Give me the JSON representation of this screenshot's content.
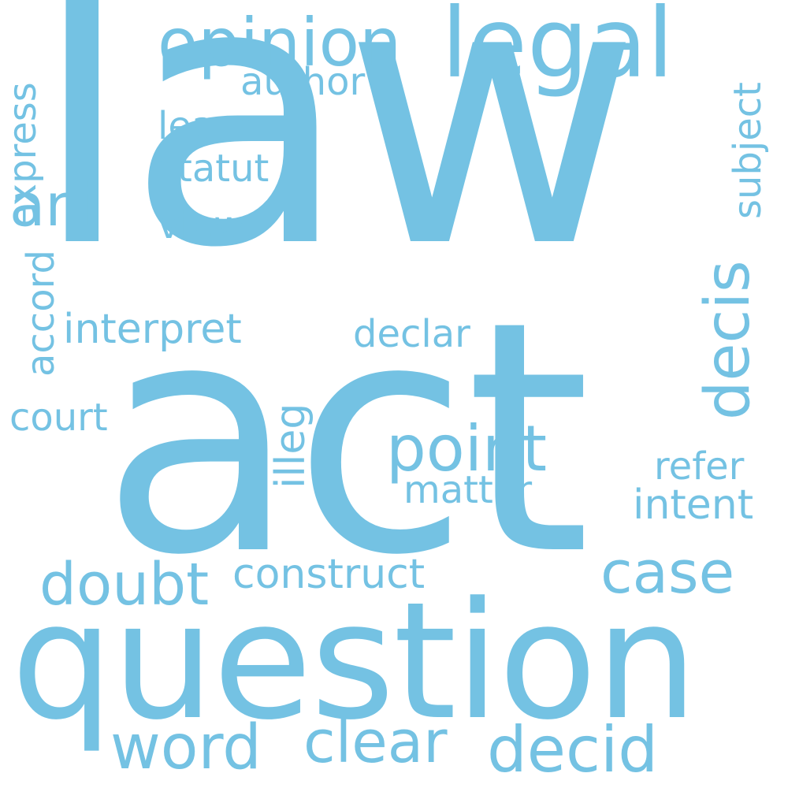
{
  "colors": {
    "background": "#ffffff",
    "word": "#74c2e3"
  },
  "words": [
    {
      "text": "law"
    },
    {
      "text": "act"
    },
    {
      "text": "question"
    },
    {
      "text": "legal"
    },
    {
      "text": "opinion"
    },
    {
      "text": "author"
    },
    {
      "text": "learn"
    },
    {
      "text": "statut"
    },
    {
      "text": "ani"
    },
    {
      "text": "view"
    },
    {
      "text": "express"
    },
    {
      "text": "accord"
    },
    {
      "text": "subject"
    },
    {
      "text": "decis"
    },
    {
      "text": "interpret"
    },
    {
      "text": "declar"
    },
    {
      "text": "illeg"
    },
    {
      "text": "court"
    },
    {
      "text": "point"
    },
    {
      "text": "refer"
    },
    {
      "text": "matter"
    },
    {
      "text": "intent"
    },
    {
      "text": "case"
    },
    {
      "text": "doubt"
    },
    {
      "text": "construct"
    },
    {
      "text": "word"
    },
    {
      "text": "clear"
    },
    {
      "text": "decid"
    }
  ]
}
